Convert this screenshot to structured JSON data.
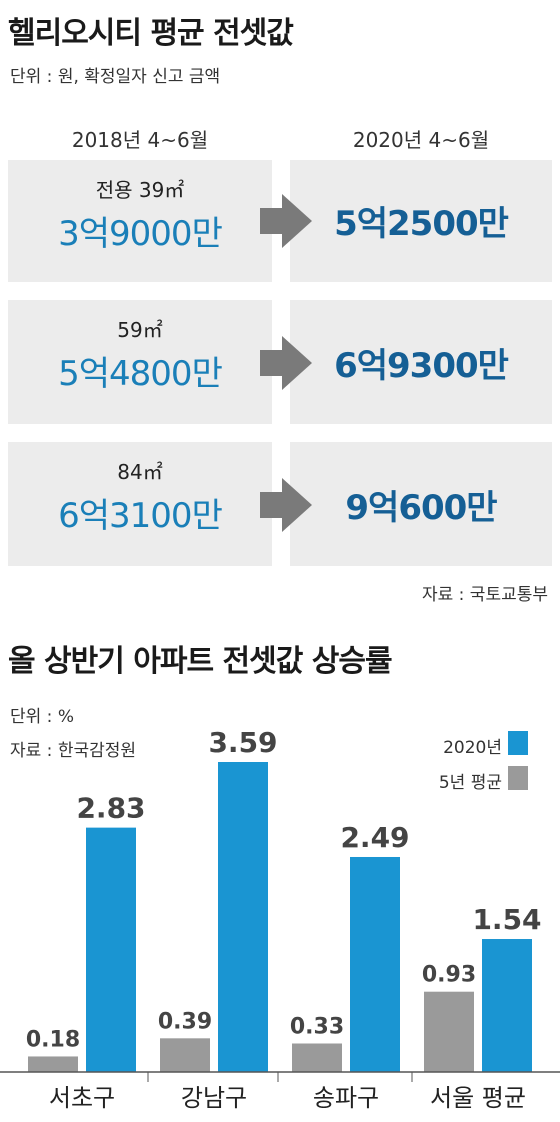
{
  "section1": {
    "title": "헬리오시티 평균 전셋값",
    "unit_note": "단위 : 원, 확정일자 신고 금액",
    "col_left": "2018년 4~6월",
    "col_right": "2020년 4~6월",
    "rows": [
      {
        "size": "전용 39㎡",
        "old": "3억9000만",
        "new": "5억2500만"
      },
      {
        "size": "59㎡",
        "old": "5억4800만",
        "new": "6억9300만"
      },
      {
        "size": "84㎡",
        "old": "6억3100만",
        "new": "9억600만"
      }
    ],
    "source": "자료 : 국토교통부"
  },
  "section2": {
    "title": "올 상반기 아파트 전셋값 상승률",
    "unit_note": "단위 : %",
    "source": "자료 : 한국감정원",
    "colors": {
      "series_2020": "#1a95d2",
      "series_5yr": "#9a9a9a",
      "label": "#444444"
    }
  },
  "chart_data": {
    "type": "bar",
    "title": "올 상반기 아파트 전셋값 상승률",
    "categories": [
      "서초구",
      "강남구",
      "송파구",
      "서울 평균"
    ],
    "series": [
      {
        "name": "5년 평균",
        "values": [
          0.18,
          0.39,
          0.33,
          0.93
        ]
      },
      {
        "name": "2020년",
        "values": [
          2.83,
          3.59,
          2.49,
          1.54
        ]
      }
    ],
    "value_labels": {
      "5년 평균": [
        "0.18",
        "0.39",
        "0.33",
        "0.93"
      ],
      "2020년": [
        "2.83",
        "3.59",
        "2.49",
        "1.54"
      ]
    },
    "ylim": [
      0,
      3.59
    ],
    "legend": "top-right",
    "grid": false
  }
}
